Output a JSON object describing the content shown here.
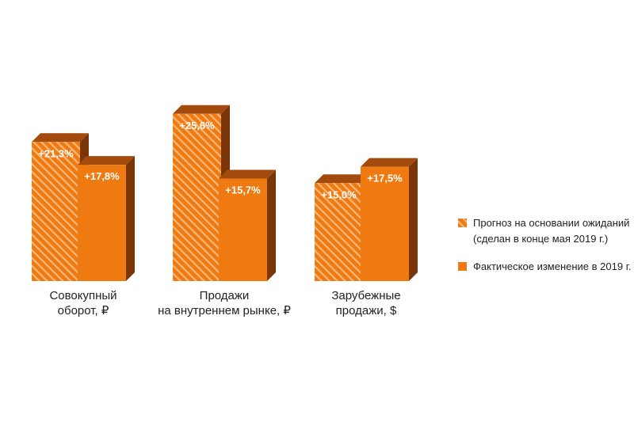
{
  "chart_data": {
    "type": "bar",
    "title": "",
    "xlabel": "",
    "ylabel": "",
    "categories": [
      [
        "Совокупный",
        "оборот, ₽"
      ],
      [
        "Продажи",
        "на внутреннем рынке, ₽"
      ],
      [
        "Зарубежные",
        "продажи, $"
      ]
    ],
    "series": [
      {
        "name": [
          "Прогноз на основании ожиданий",
          "(сделан в конце мая 2019 г.)"
        ],
        "style": "hatched",
        "values": [
          21.3,
          25.6,
          15.0
        ],
        "labels": [
          "+21,3%",
          "+25,6%",
          "+15,0%"
        ]
      },
      {
        "name": [
          "Фактическое изменение в 2019 г."
        ],
        "style": "solid",
        "values": [
          17.8,
          15.7,
          17.5
        ],
        "labels": [
          "+17,8%",
          "+15,7%",
          "+17,5%"
        ]
      }
    ],
    "ylim": [
      0,
      26
    ],
    "grid": false,
    "legend_position": "right",
    "colors": {
      "front": "#f07a12",
      "side": "#7a3608",
      "top": "#a34a0d",
      "hatch_stripe": "#f7b87a"
    }
  }
}
